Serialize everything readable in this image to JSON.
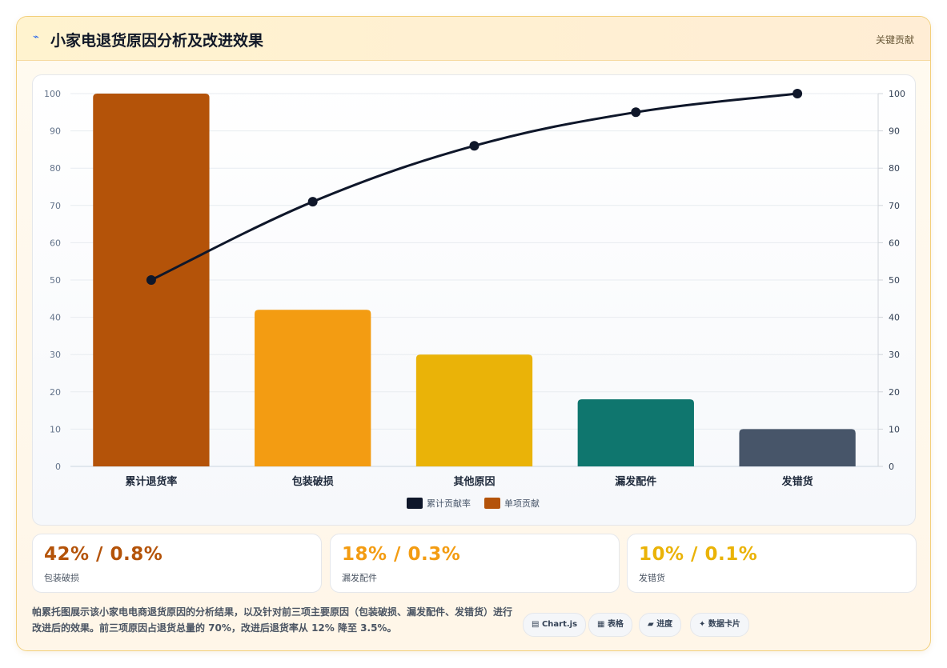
{
  "header": {
    "icon": "chart-icon",
    "title": "小家电退货原因分析及改进效果",
    "badge": "关键贡献"
  },
  "colors": {
    "line": "#0f172a",
    "bars": [
      "#b45309",
      "#f39c12",
      "#eab308",
      "#0f766e",
      "#475569"
    ]
  },
  "chart_data": {
    "type": "bar",
    "categories": [
      "累计退货率",
      "包装破损",
      "其他原因",
      "漏发配件",
      "发错货"
    ],
    "series": [
      {
        "name": "单项贡献",
        "type": "bar",
        "values": [
          100,
          42,
          30,
          18,
          10
        ]
      },
      {
        "name": "累计贡献率",
        "type": "line",
        "values": [
          50,
          71,
          86,
          95,
          100
        ]
      }
    ],
    "ylim": [
      0,
      100
    ],
    "y_ticks": [
      0,
      10,
      20,
      30,
      40,
      50,
      60,
      70,
      80,
      90,
      100
    ],
    "y2_ticks": [
      0,
      10,
      20,
      30,
      40,
      50,
      60,
      70,
      80,
      90,
      100
    ],
    "legend": {
      "placement": "bottom",
      "items": [
        "累计贡献率",
        "单项贡献"
      ]
    },
    "grid": true
  },
  "kpis": [
    {
      "value": "42% / 0.8%",
      "label": "包装破损",
      "color": "#b45309"
    },
    {
      "value": "18% / 0.3%",
      "label": "漏发配件",
      "color": "#f39c12"
    },
    {
      "value": "10% / 0.1%",
      "label": "发错货",
      "color": "#eab308"
    }
  ],
  "footer": {
    "description": "帕累托图展示该小家电电商退货原因的分析结果，以及针对前三项主要原因（包装破损、漏发配件、发错货）进行改进后的效果。前三项原因占退货总量的 70%，改进后退货率从 12% 降至 3.5%。",
    "chips": [
      {
        "icon": "▤",
        "label": "Chart.js"
      },
      {
        "icon": "▦",
        "label": "表格"
      },
      {
        "icon": "▰",
        "label": "进度"
      },
      {
        "icon": "✦",
        "label": "数据卡片"
      }
    ]
  }
}
